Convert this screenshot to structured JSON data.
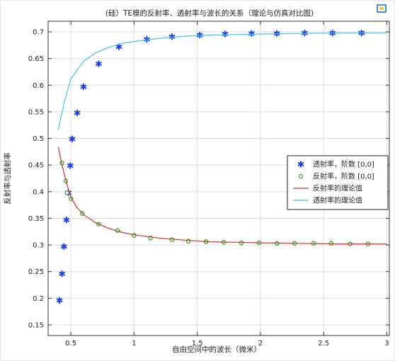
{
  "chart_data": {
    "type": "scatter",
    "title": "(硅）TE模的反射率、透射率与波长的关系（理论与仿真对比图)",
    "xlabel": "自由空间中的波长（微米）",
    "ylabel": "反射率与透射率",
    "xlim": [
      0.32,
      3.02
    ],
    "ylim": [
      0.13,
      0.72
    ],
    "x_ticks": [
      0.5,
      1,
      1.5,
      2,
      2.5,
      3
    ],
    "x_tick_labels": [
      "0.5",
      "1",
      "1.5",
      "2",
      "2.5",
      "3"
    ],
    "y_ticks": [
      0.15,
      0.2,
      0.25,
      0.3,
      0.35,
      0.4,
      0.45,
      0.5,
      0.55,
      0.6,
      0.65,
      0.7
    ],
    "y_tick_labels": [
      "0.15",
      "0.2",
      "0.25",
      "0.3",
      "0.35",
      "0.4",
      "0.45",
      "0.5",
      "0.55",
      "0.6",
      "0.65",
      "0.7"
    ],
    "grid": true,
    "legend_position": "right",
    "series": [
      {
        "name": "透射率，阶数 [0,0]",
        "kind": "marker",
        "marker": "asterisk",
        "color": "#1a3fe0",
        "x": [
          0.41,
          0.43,
          0.445,
          0.465,
          0.48,
          0.495,
          0.51,
          0.55,
          0.6,
          0.72,
          0.88,
          1.1,
          1.3,
          1.52,
          1.72,
          1.93,
          2.13,
          2.35,
          2.57,
          2.8
        ],
        "y": [
          0.196,
          0.246,
          0.297,
          0.347,
          0.398,
          0.449,
          0.499,
          0.548,
          0.597,
          0.64,
          0.672,
          0.686,
          0.691,
          0.694,
          0.696,
          0.697,
          0.697,
          0.698,
          0.698,
          0.698
        ]
      },
      {
        "name": "反射率，阶数 [0,0]",
        "kind": "marker",
        "marker": "circle",
        "color": "#2aa52a",
        "x": [
          0.43,
          0.46,
          0.47,
          0.5,
          0.59,
          0.72,
          0.87,
          1.0,
          1.13,
          1.3,
          1.43,
          1.57,
          1.71,
          1.85,
          1.99,
          2.13,
          2.27,
          2.42,
          2.56,
          2.71,
          2.85
        ],
        "y": [
          0.454,
          0.42,
          0.398,
          0.387,
          0.359,
          0.339,
          0.327,
          0.318,
          0.313,
          0.31,
          0.307,
          0.306,
          0.305,
          0.304,
          0.304,
          0.303,
          0.303,
          0.303,
          0.303,
          0.302,
          0.302
        ]
      },
      {
        "name": "反射率的理论值",
        "kind": "line",
        "color": "#d0312d",
        "x": [
          0.4,
          0.43,
          0.46,
          0.5,
          0.55,
          0.6,
          0.7,
          0.8,
          0.9,
          1.0,
          1.2,
          1.4,
          1.6,
          1.8,
          2.0,
          2.3,
          2.6,
          3.0
        ],
        "y": [
          0.484,
          0.45,
          0.421,
          0.389,
          0.37,
          0.357,
          0.341,
          0.331,
          0.324,
          0.319,
          0.313,
          0.309,
          0.306,
          0.305,
          0.304,
          0.303,
          0.302,
          0.302
        ]
      },
      {
        "name": "透射率的理论值",
        "kind": "line",
        "color": "#3cc8e8",
        "x": [
          0.4,
          0.45,
          0.5,
          0.6,
          0.7,
          0.8,
          0.9,
          1.0,
          1.2,
          1.4,
          1.6,
          1.8,
          2.0,
          2.3,
          2.6,
          3.0
        ],
        "y": [
          0.516,
          0.57,
          0.612,
          0.645,
          0.661,
          0.671,
          0.678,
          0.682,
          0.688,
          0.692,
          0.694,
          0.695,
          0.696,
          0.697,
          0.698,
          0.698
        ]
      }
    ]
  },
  "toolbar": {
    "export_icon": "export-image-icon"
  }
}
